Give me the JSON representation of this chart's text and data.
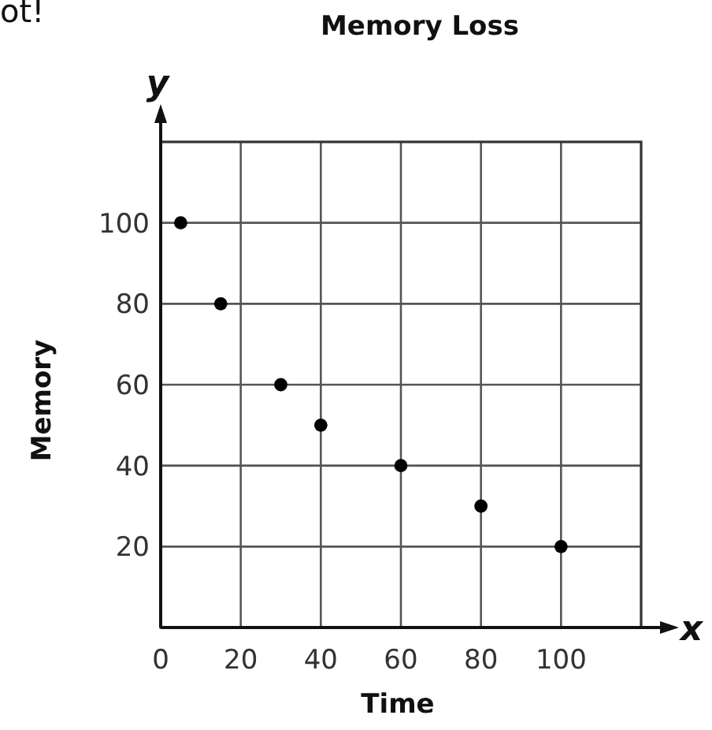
{
  "chart_data": {
    "type": "scatter",
    "title": "Memory Loss",
    "xlabel": "Time",
    "ylabel": "Memory",
    "annotations": [
      "ot!",
      "x",
      "y"
    ],
    "x": [
      5,
      15,
      30,
      40,
      60,
      80,
      100
    ],
    "values": [
      100,
      80,
      60,
      50,
      40,
      30,
      20
    ],
    "color": "#000000",
    "xlim": [
      0,
      120
    ],
    "ylim": [
      0,
      120
    ],
    "xticks": [
      0,
      20,
      40,
      60,
      80,
      100
    ],
    "yticks": [
      20,
      40,
      60,
      80,
      100
    ],
    "grid": true,
    "marker": "circle"
  }
}
